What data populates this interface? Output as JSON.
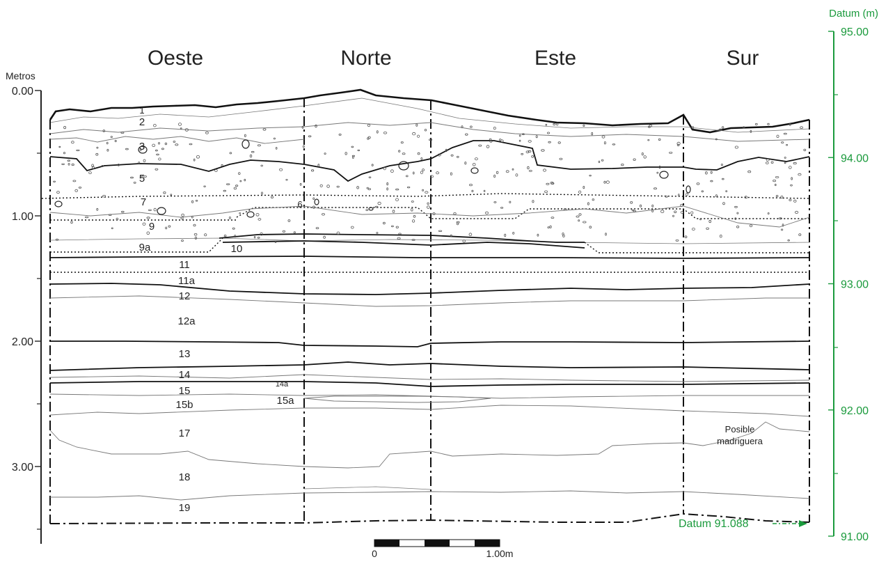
{
  "walls": [
    "Oeste",
    "Norte",
    "Este",
    "Sur"
  ],
  "left_axis": {
    "title": "Metros",
    "ticks": [
      {
        "value": 0,
        "label": "0.00"
      },
      {
        "value": 1,
        "label": "1.00"
      },
      {
        "value": 2,
        "label": "2.00"
      },
      {
        "value": 3,
        "label": "3.00"
      }
    ]
  },
  "right_axis": {
    "title": "Datum (m)",
    "color": "#1a9a3c",
    "ticks": [
      {
        "value": 95,
        "label": "95.00"
      },
      {
        "value": 94,
        "label": "94.00"
      },
      {
        "value": 93,
        "label": "93.00"
      },
      {
        "value": 92,
        "label": "92.00"
      },
      {
        "value": 91,
        "label": "91.00"
      }
    ]
  },
  "datum_label": "Datum 91.088",
  "burrow_note": [
    "Posible",
    "madriguera"
  ],
  "scale_bar": {
    "start_label": "0",
    "end_label": "1.00m"
  },
  "layers": [
    {
      "id": "l1",
      "label": "1"
    },
    {
      "id": "l2",
      "label": "2"
    },
    {
      "id": "l3",
      "label": "3"
    },
    {
      "id": "l5",
      "label": "5"
    },
    {
      "id": "l6",
      "label": "6"
    },
    {
      "id": "l7",
      "label": "7"
    },
    {
      "id": "l9",
      "label": "9"
    },
    {
      "id": "l9a",
      "label": "9a"
    },
    {
      "id": "l10",
      "label": "10"
    },
    {
      "id": "l11",
      "label": "11"
    },
    {
      "id": "l11a",
      "label": "11a"
    },
    {
      "id": "l12",
      "label": "12"
    },
    {
      "id": "l12a",
      "label": "12a"
    },
    {
      "id": "l13",
      "label": "13"
    },
    {
      "id": "l14",
      "label": "14"
    },
    {
      "id": "l14a",
      "label": "14a"
    },
    {
      "id": "l15",
      "label": "15"
    },
    {
      "id": "l15a",
      "label": "15a"
    },
    {
      "id": "l15b",
      "label": "15b"
    },
    {
      "id": "l17",
      "label": "17"
    },
    {
      "id": "l18",
      "label": "18"
    },
    {
      "id": "l19",
      "label": "19"
    }
  ]
}
